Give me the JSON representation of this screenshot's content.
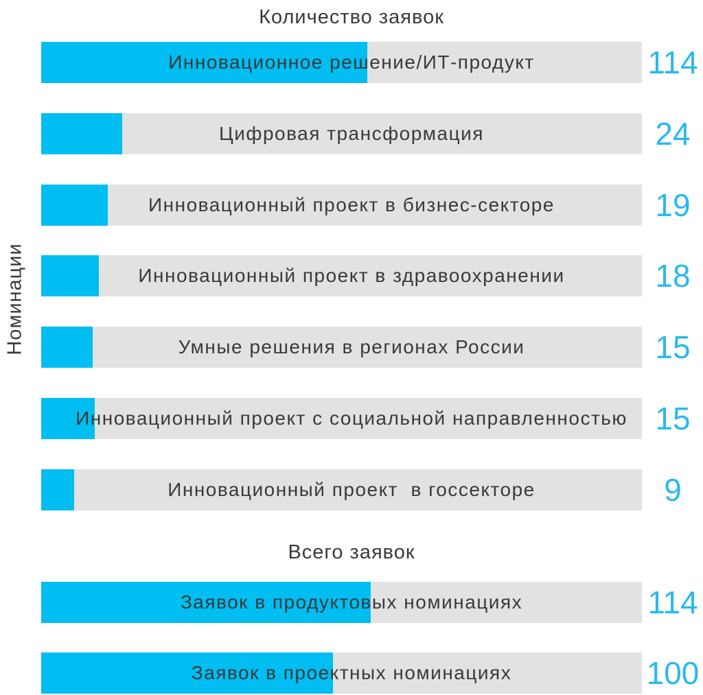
{
  "chart_data": {
    "type": "bar",
    "orientation": "horizontal",
    "ylabel": "Номинации",
    "grid": false,
    "legend": false,
    "colors": {
      "bar_fill": "#00BDF2",
      "bar_track": "#E2E2E2",
      "value_text": "#29B9EE",
      "label_text": "#3A3A3A",
      "title_text": "#3A3A3A"
    },
    "sections": [
      {
        "title": "Количество заявок",
        "bars": [
          {
            "label": "Инновационное решение/ИТ-продукт",
            "value": 114,
            "fill_pct": 54.3
          },
          {
            "label": "Цифровая трансформация",
            "value": 24,
            "fill_pct": 13.5
          },
          {
            "label": "Инновационный проект в бизнес-секторе",
            "value": 19,
            "fill_pct": 11.1
          },
          {
            "label": "Инновационный проект в здравоохранении",
            "value": 18,
            "fill_pct": 9.6
          },
          {
            "label": "Умные решения в регионах России",
            "value": 15,
            "fill_pct": 8.6
          },
          {
            "label": "Инновационный проект с социальной направленностью",
            "value": 15,
            "fill_pct": 8.9
          },
          {
            "label": "Инновационный проект  в госсекторе",
            "value": 9,
            "fill_pct": 5.5
          }
        ]
      },
      {
        "title": "Всего заявок",
        "bars": [
          {
            "label": "Заявок в продуктовых номинациях",
            "value": 114,
            "fill_pct": 54.9
          },
          {
            "label": "Заявок в проектных номинациях",
            "value": 100,
            "fill_pct": 48.6
          }
        ]
      }
    ]
  }
}
